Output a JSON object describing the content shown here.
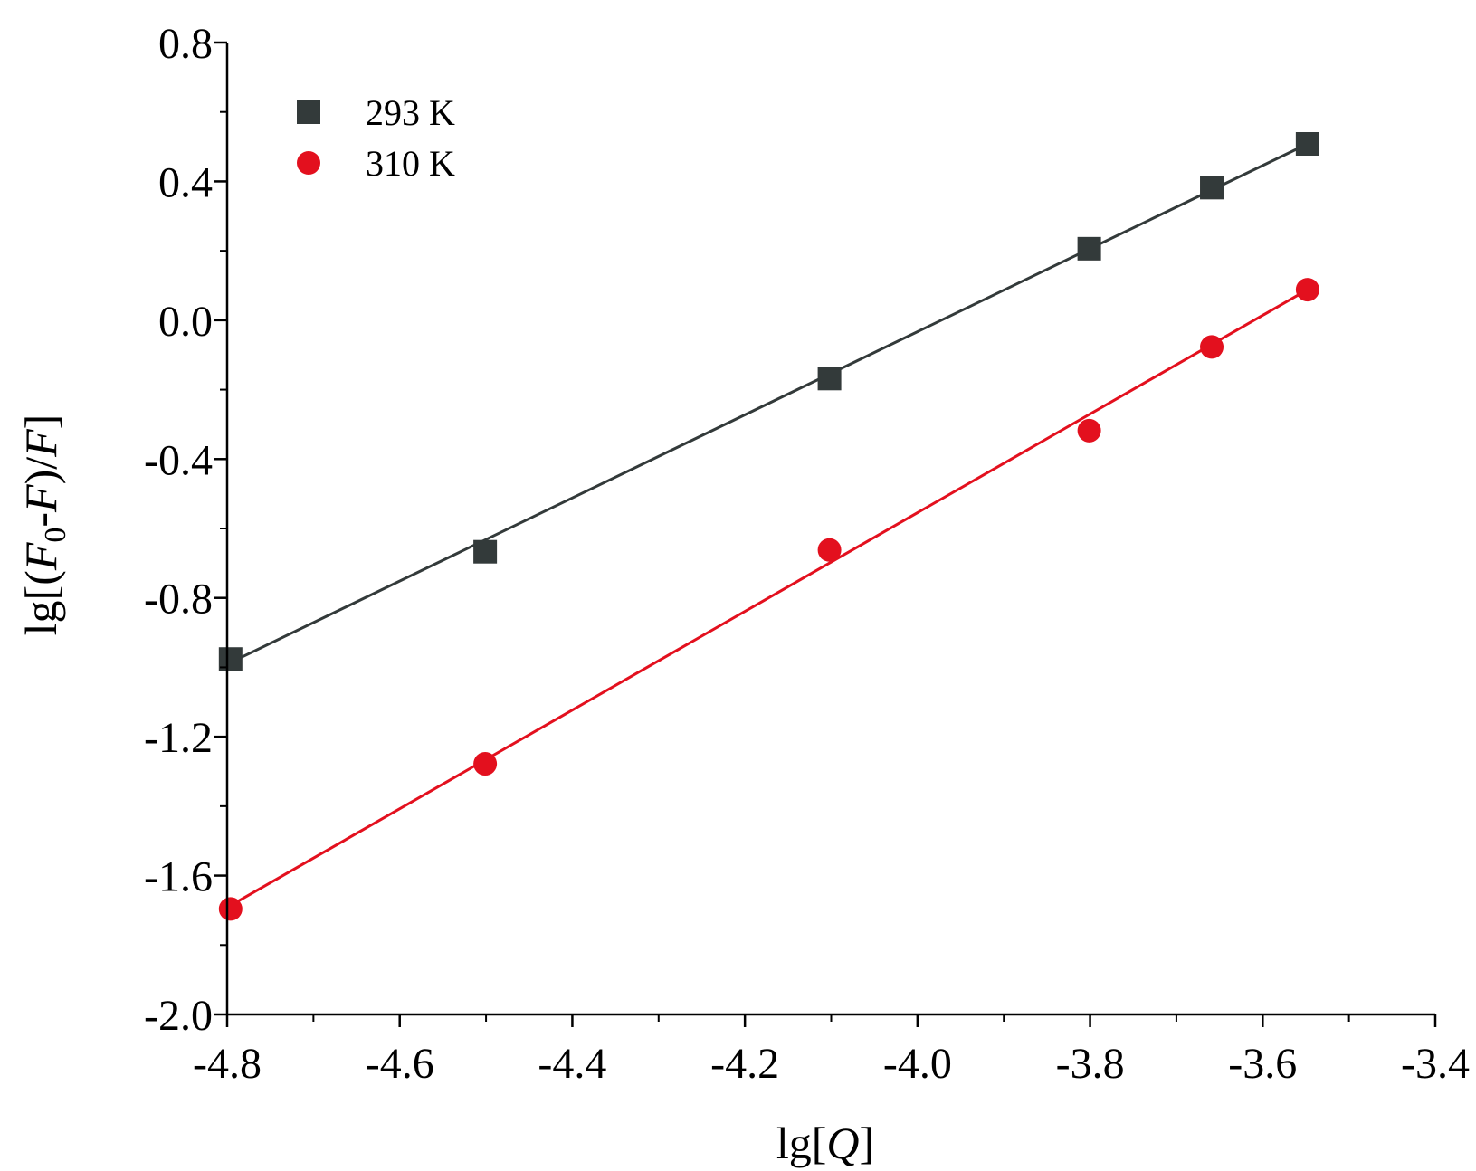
{
  "chart_data": {
    "type": "scatter",
    "title": "",
    "xlabel": {
      "prefix": "lg[",
      "var": "Q",
      "suffix": "]"
    },
    "ylabel": {
      "p1": "lg[(",
      "v1": "F",
      "sub": "0",
      "p2": "-",
      "v2": "F",
      "p3": ")/",
      "v3": "F",
      "p4": "]"
    },
    "xlim": [
      -4.8,
      -3.4
    ],
    "ylim": [
      -2.0,
      0.8
    ],
    "xticks": [
      -4.8,
      -4.6,
      -4.4,
      -4.2,
      -4.0,
      -3.8,
      -3.6,
      -3.4
    ],
    "xtick_labels": [
      "-4.8",
      "-4.6",
      "-4.4",
      "-4.2",
      "-4.0",
      "-3.8",
      "-3.6",
      "-3.4"
    ],
    "yticks": [
      0.8,
      0.4,
      0.0,
      -0.4,
      -0.8,
      -1.2,
      -1.6,
      -2.0
    ],
    "ytick_labels": [
      "0.8",
      "0.4",
      "0.0",
      "-0.4",
      "-0.8",
      "-1.2",
      "-1.6",
      "-2.0"
    ],
    "grid": false,
    "legend_position": "top-left",
    "series": [
      {
        "name": "293 K",
        "marker": "square",
        "color": "#333a3a",
        "x": [
          -4.796,
          -4.501,
          -4.102,
          -3.801,
          -3.659,
          -3.548
        ],
        "y": [
          -0.976,
          -0.667,
          -0.168,
          0.206,
          0.382,
          0.508
        ],
        "fit": {
          "x": [
            -4.796,
            -3.548
          ],
          "y": [
            -0.986,
            0.508
          ]
        }
      },
      {
        "name": "310 K",
        "marker": "circle",
        "color": "#e3101e",
        "x": [
          -4.796,
          -4.501,
          -4.102,
          -3.801,
          -3.659,
          -3.548
        ],
        "y": [
          -1.696,
          -1.278,
          -0.662,
          -0.318,
          -0.077,
          0.088
        ],
        "fit": {
          "x": [
            -4.796,
            -3.548
          ],
          "y": [
            -1.686,
            0.088
          ]
        }
      }
    ]
  }
}
